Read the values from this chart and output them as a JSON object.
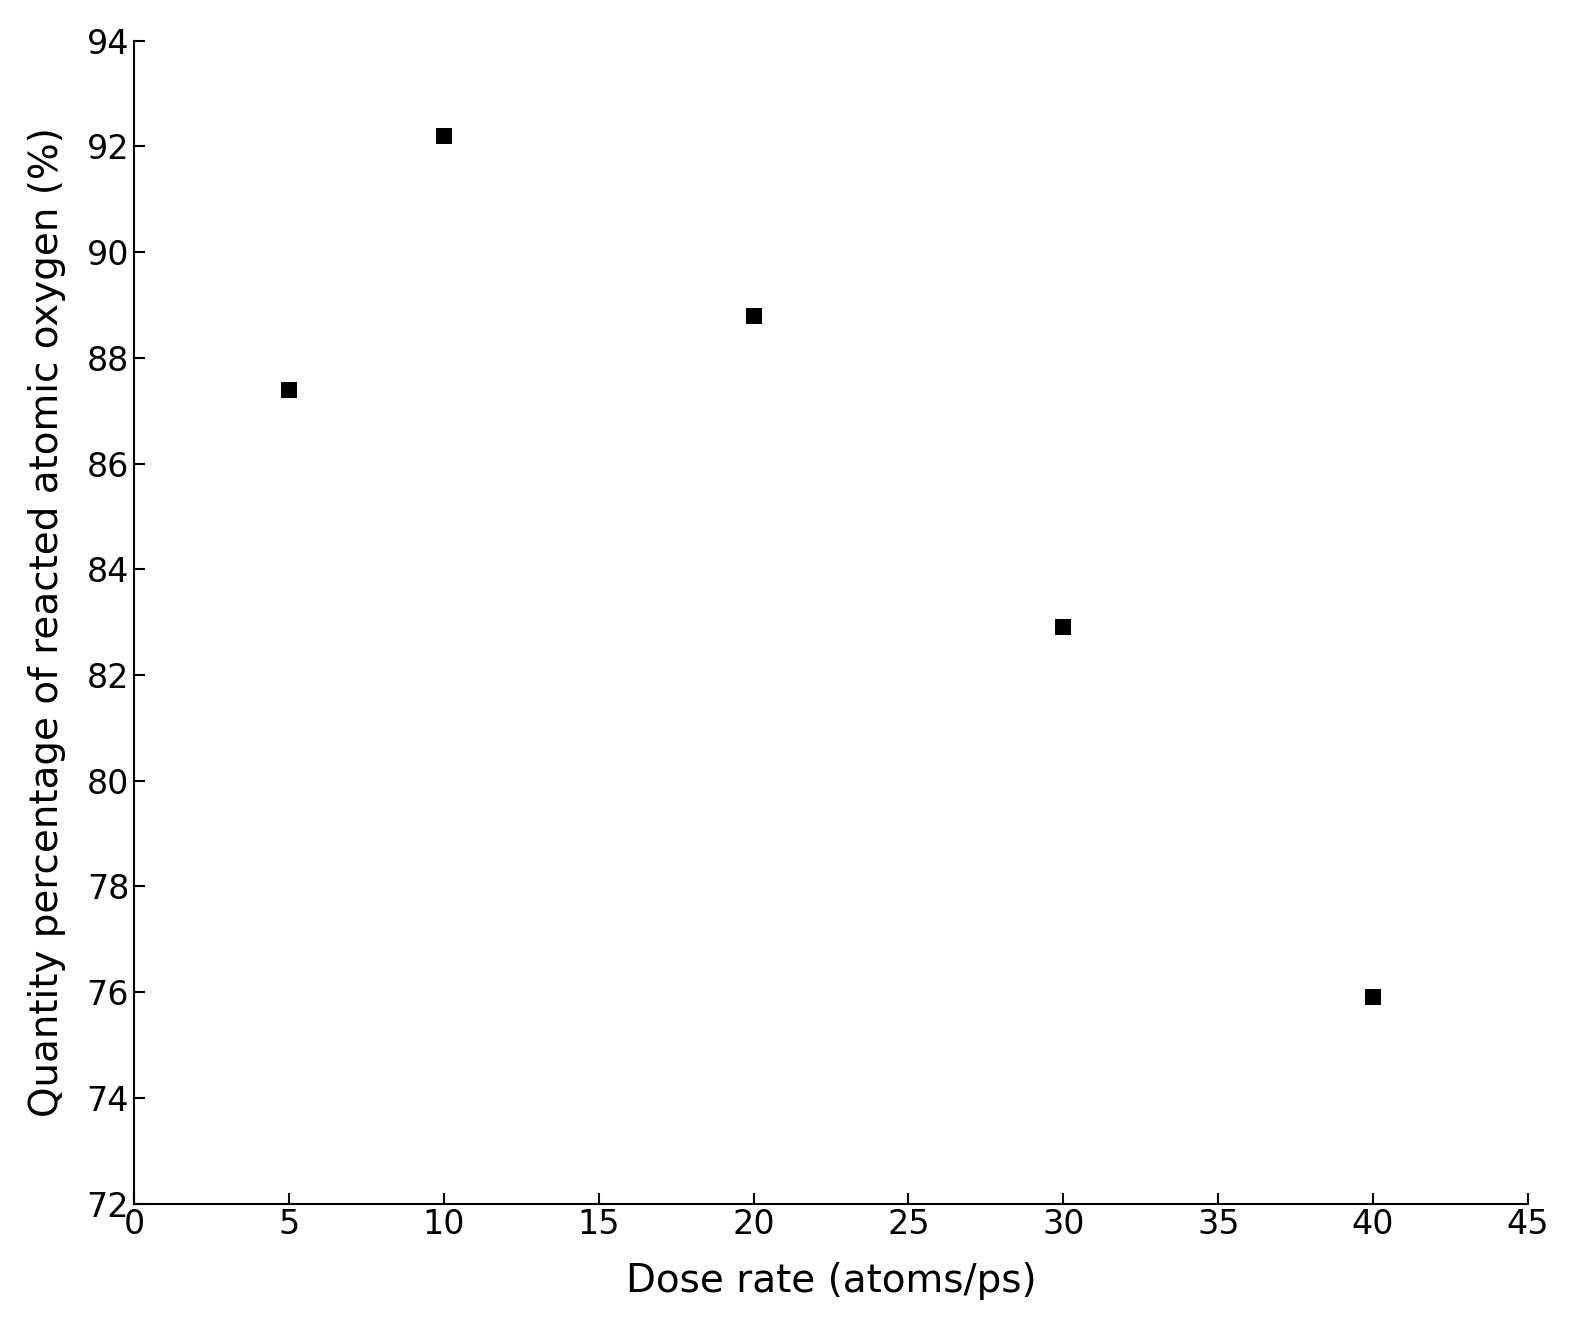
{
  "x": [
    5,
    10,
    20,
    30,
    40
  ],
  "y": [
    87.4,
    92.2,
    88.8,
    82.9,
    75.9
  ],
  "marker": "s",
  "marker_color": "#000000",
  "marker_size": 120,
  "xlabel": "Dose rate (atoms/ps)",
  "ylabel": "Quantity percentage of reacted atomic oxygen (%)",
  "xlim": [
    0,
    45
  ],
  "ylim": [
    72,
    94
  ],
  "xticks": [
    0,
    5,
    10,
    15,
    20,
    25,
    30,
    35,
    40,
    45
  ],
  "yticks": [
    72,
    74,
    76,
    78,
    80,
    82,
    84,
    86,
    88,
    90,
    92,
    94
  ],
  "xlabel_fontsize": 28,
  "ylabel_fontsize": 28,
  "tick_fontsize": 24,
  "background_color": "#ffffff",
  "spine_color": "#000000",
  "fig_width": 15.77,
  "fig_height": 13.28,
  "dpi": 100
}
